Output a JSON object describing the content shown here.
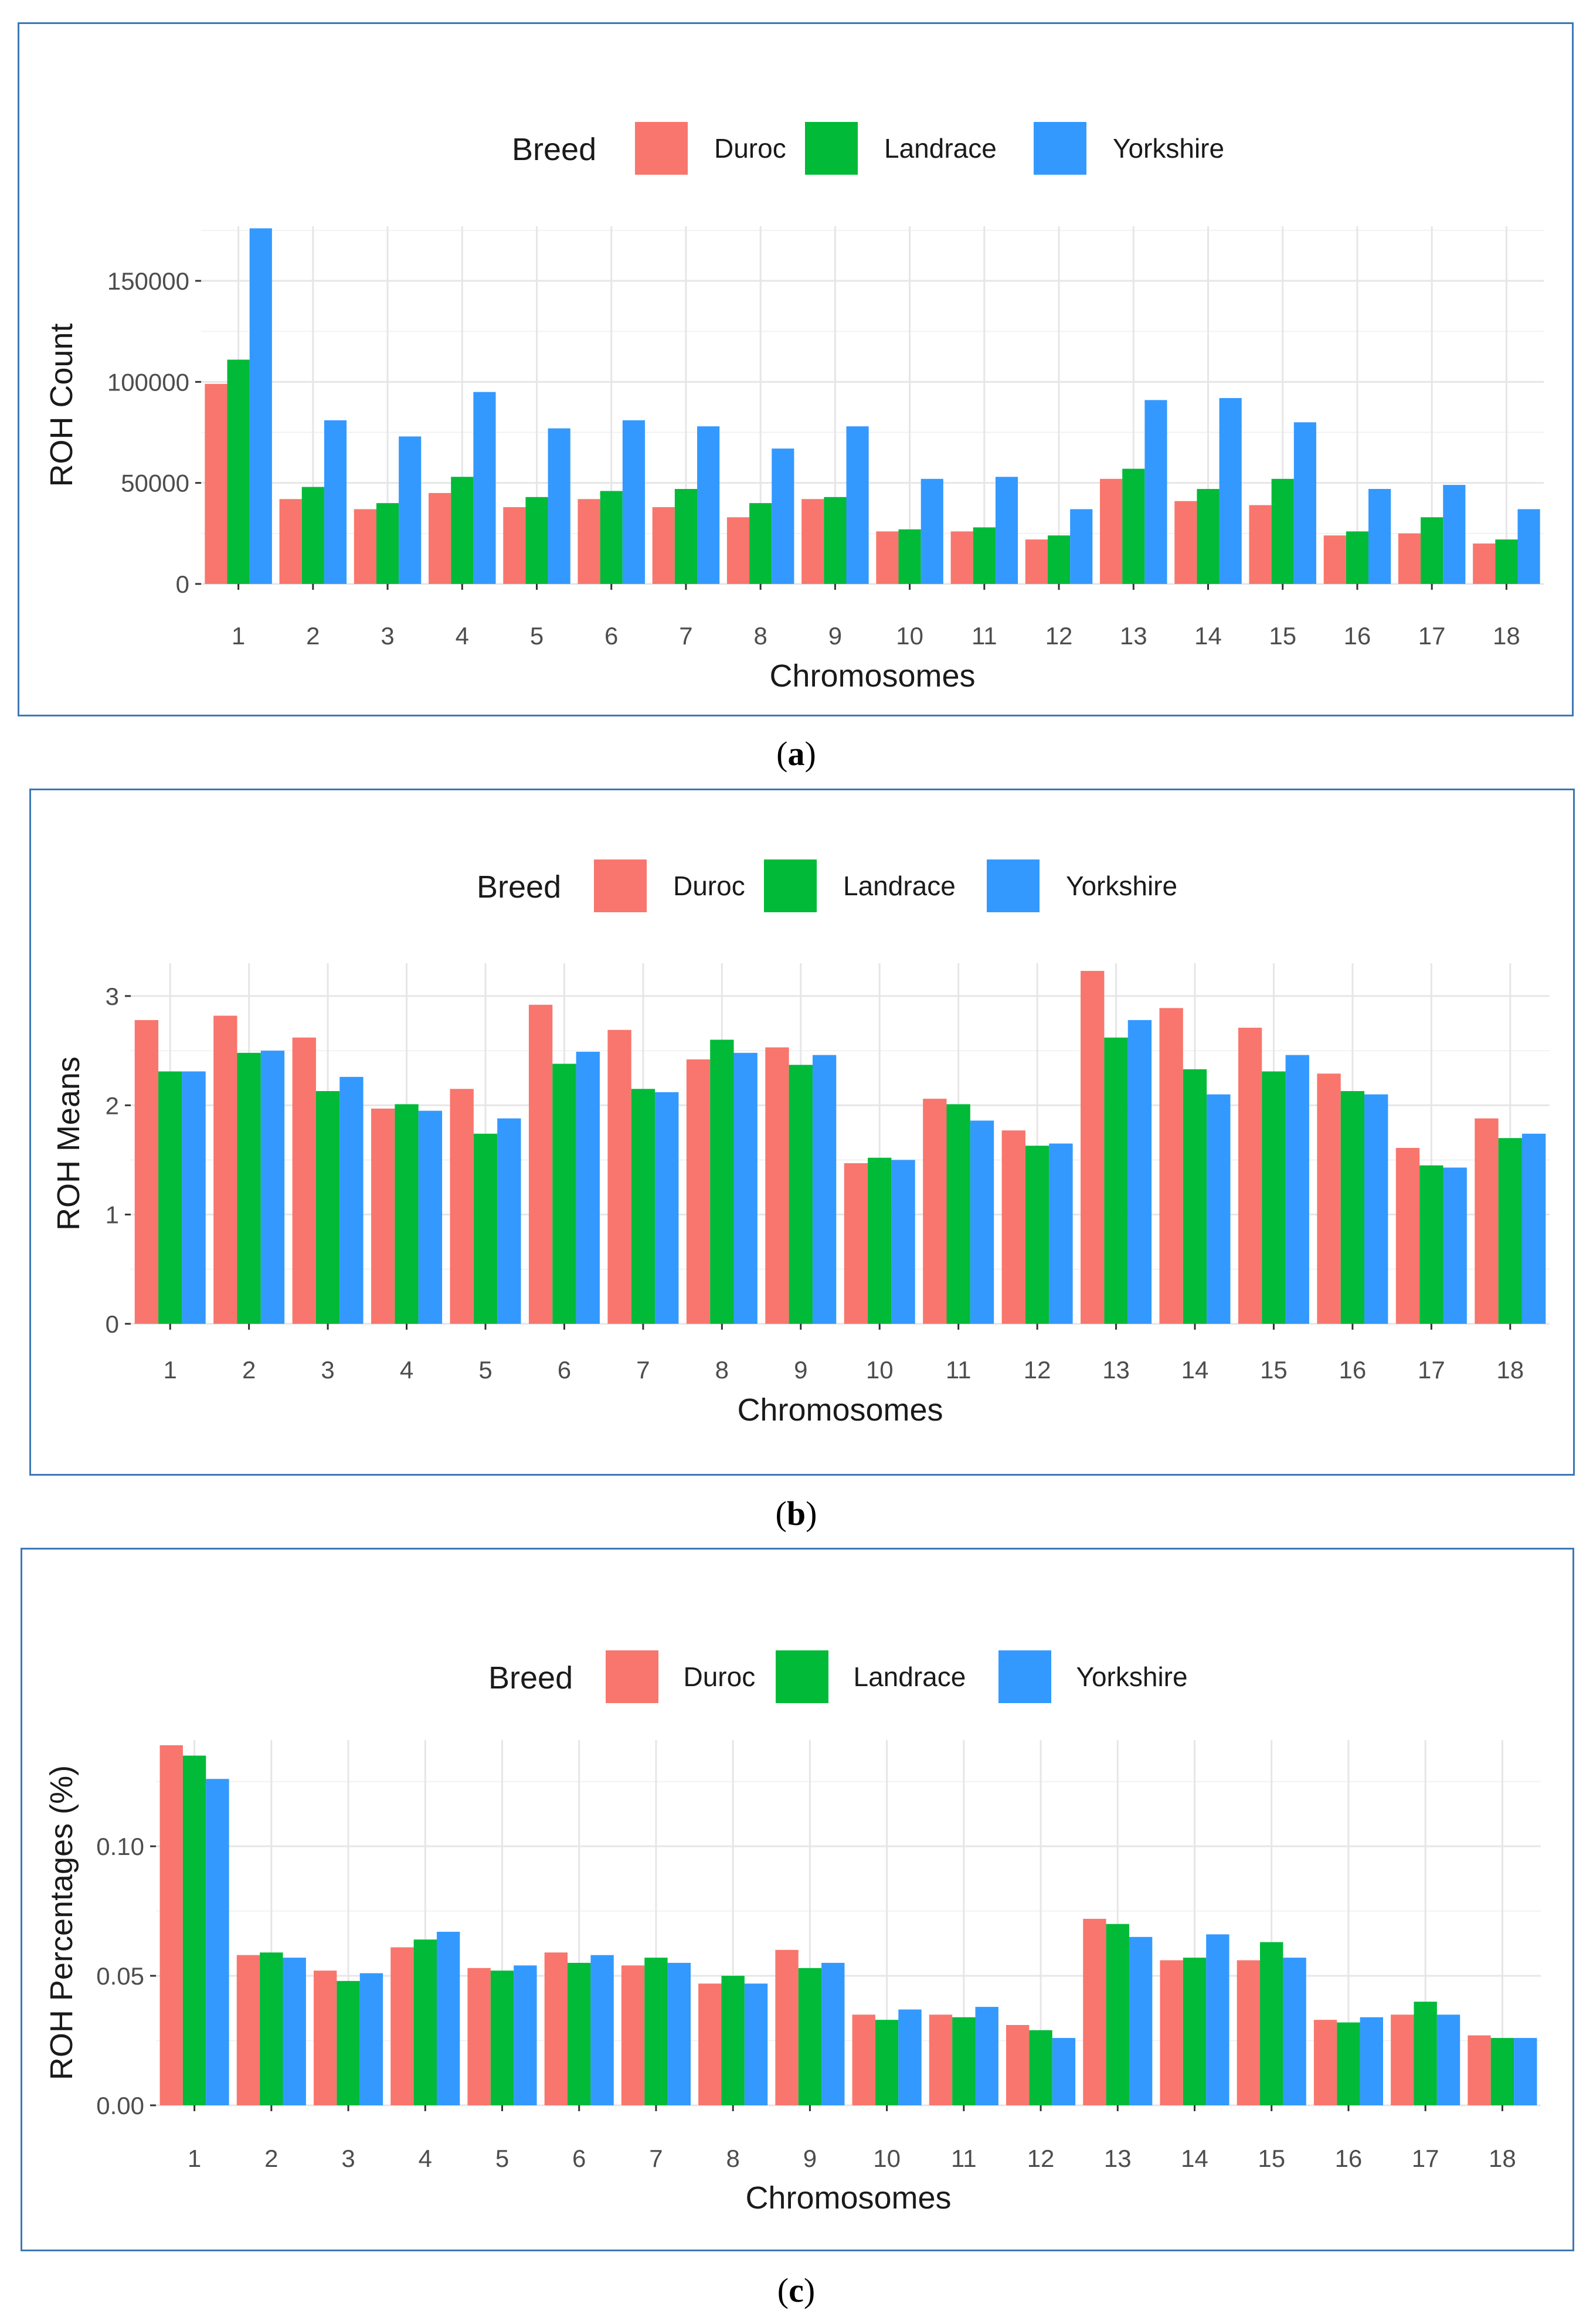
{
  "legend": {
    "title": "Breed",
    "items": [
      {
        "name": "Duroc",
        "color": "#F8766D"
      },
      {
        "name": "Landrace",
        "color": "#00BA38"
      },
      {
        "name": "Yorkshire",
        "color": "#3399FF"
      }
    ]
  },
  "captions": {
    "a": {
      "open": "(",
      "letter": "a",
      "close": ")"
    },
    "b": {
      "open": "(",
      "letter": "b",
      "close": ")"
    },
    "c": {
      "open": "(",
      "letter": "c",
      "close": ")"
    }
  },
  "chart_data": [
    {
      "id": "a",
      "type": "bar",
      "title": "",
      "xlabel": "Chromosomes",
      "ylabel": "ROH Count",
      "ylim": [
        0,
        177000
      ],
      "yticks": [
        0,
        50000,
        100000,
        150000
      ],
      "ytick_labels": [
        "0",
        "50000",
        "100000",
        "150000"
      ],
      "grid": true,
      "legend_position": "top",
      "categories": [
        "1",
        "2",
        "3",
        "4",
        "5",
        "6",
        "7",
        "8",
        "9",
        "10",
        "11",
        "12",
        "13",
        "14",
        "15",
        "16",
        "17",
        "18"
      ],
      "series": [
        {
          "name": "Duroc",
          "values": [
            99000,
            42000,
            37000,
            45000,
            38000,
            42000,
            38000,
            33000,
            42000,
            26000,
            26000,
            22000,
            52000,
            41000,
            39000,
            24000,
            25000,
            20000
          ]
        },
        {
          "name": "Landrace",
          "values": [
            111000,
            48000,
            40000,
            53000,
            43000,
            46000,
            47000,
            40000,
            43000,
            27000,
            28000,
            24000,
            57000,
            47000,
            52000,
            26000,
            33000,
            22000
          ]
        },
        {
          "name": "Yorkshire",
          "values": [
            176000,
            81000,
            73000,
            95000,
            77000,
            81000,
            78000,
            67000,
            78000,
            52000,
            53000,
            37000,
            91000,
            92000,
            80000,
            47000,
            49000,
            37000
          ]
        }
      ]
    },
    {
      "id": "b",
      "type": "bar",
      "title": "",
      "xlabel": "Chromosomes",
      "ylabel": "ROH Means",
      "ylim": [
        0,
        3.3
      ],
      "yticks": [
        0,
        1,
        2,
        3
      ],
      "ytick_labels": [
        "0",
        "1",
        "2",
        "3"
      ],
      "grid": true,
      "legend_position": "top",
      "categories": [
        "1",
        "2",
        "3",
        "4",
        "5",
        "6",
        "7",
        "8",
        "9",
        "10",
        "11",
        "12",
        "13",
        "14",
        "15",
        "16",
        "17",
        "18"
      ],
      "series": [
        {
          "name": "Duroc",
          "values": [
            2.78,
            2.82,
            2.62,
            1.97,
            2.15,
            2.92,
            2.69,
            2.42,
            2.53,
            1.47,
            2.06,
            1.77,
            3.23,
            2.89,
            2.71,
            2.29,
            1.61,
            1.88
          ]
        },
        {
          "name": "Landrace",
          "values": [
            2.31,
            2.48,
            2.13,
            2.01,
            1.74,
            2.38,
            2.15,
            2.6,
            2.37,
            1.52,
            2.01,
            1.63,
            2.62,
            2.33,
            2.31,
            2.13,
            1.45,
            1.7
          ]
        },
        {
          "name": "Yorkshire",
          "values": [
            2.31,
            2.5,
            2.26,
            1.95,
            1.88,
            2.49,
            2.12,
            2.48,
            2.46,
            1.5,
            1.86,
            1.65,
            2.78,
            2.1,
            2.46,
            2.1,
            1.43,
            1.74
          ]
        }
      ]
    },
    {
      "id": "c",
      "type": "bar",
      "title": "",
      "xlabel": "Chromosomes",
      "ylabel": "ROH Percentages (%)",
      "ylim": [
        0,
        0.141
      ],
      "yticks": [
        0,
        0.05,
        0.1
      ],
      "ytick_labels": [
        "0.00",
        "0.05",
        "0.10"
      ],
      "grid": true,
      "legend_position": "top",
      "categories": [
        "1",
        "2",
        "3",
        "4",
        "5",
        "6",
        "7",
        "8",
        "9",
        "10",
        "11",
        "12",
        "13",
        "14",
        "15",
        "16",
        "17",
        "18"
      ],
      "series": [
        {
          "name": "Duroc",
          "values": [
            0.139,
            0.058,
            0.052,
            0.061,
            0.053,
            0.059,
            0.054,
            0.047,
            0.06,
            0.035,
            0.035,
            0.031,
            0.072,
            0.056,
            0.056,
            0.033,
            0.035,
            0.027
          ]
        },
        {
          "name": "Landrace",
          "values": [
            0.135,
            0.059,
            0.048,
            0.064,
            0.052,
            0.055,
            0.057,
            0.05,
            0.053,
            0.033,
            0.034,
            0.029,
            0.07,
            0.057,
            0.063,
            0.032,
            0.04,
            0.026
          ]
        },
        {
          "name": "Yorkshire",
          "values": [
            0.126,
            0.057,
            0.051,
            0.067,
            0.054,
            0.058,
            0.055,
            0.047,
            0.055,
            0.037,
            0.038,
            0.026,
            0.065,
            0.066,
            0.057,
            0.034,
            0.035,
            0.026
          ]
        }
      ]
    }
  ]
}
